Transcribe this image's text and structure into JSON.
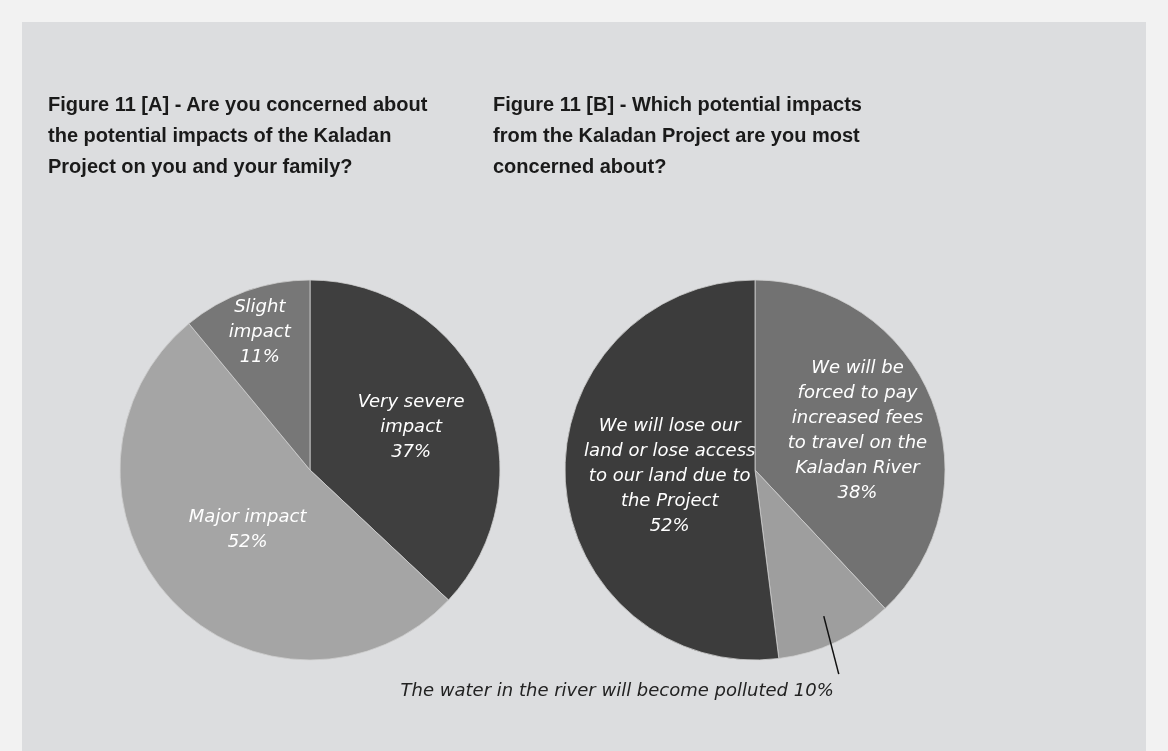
{
  "chart_data": [
    {
      "type": "pie",
      "title": "Figure 11 [A] -  Are you concerned about the potential impacts of the Kaladan Project on you and your family?",
      "categories": [
        "Very severe impact",
        "Major impact",
        "Slight impact"
      ],
      "values": [
        37,
        52,
        11
      ],
      "value_labels": [
        "37%",
        "52%",
        "11%"
      ],
      "colors": [
        "#3f3f3f",
        "#a5a5a5",
        "#777777"
      ]
    },
    {
      "type": "pie",
      "title": "Figure 11 [B] -  Which potential impacts from the Kaladan Project are you most concerned about?",
      "categories": [
        "We will be forced to pay increased fees to travel on the Kaladan River",
        "The water in the river will become polluted",
        "We will lose our land or lose access to our land due to the Project"
      ],
      "values": [
        38,
        10,
        52
      ],
      "value_labels": [
        "38%",
        "10%",
        "52%"
      ],
      "colors": [
        "#727272",
        "#9e9e9e",
        "#3c3c3c"
      ]
    }
  ]
}
